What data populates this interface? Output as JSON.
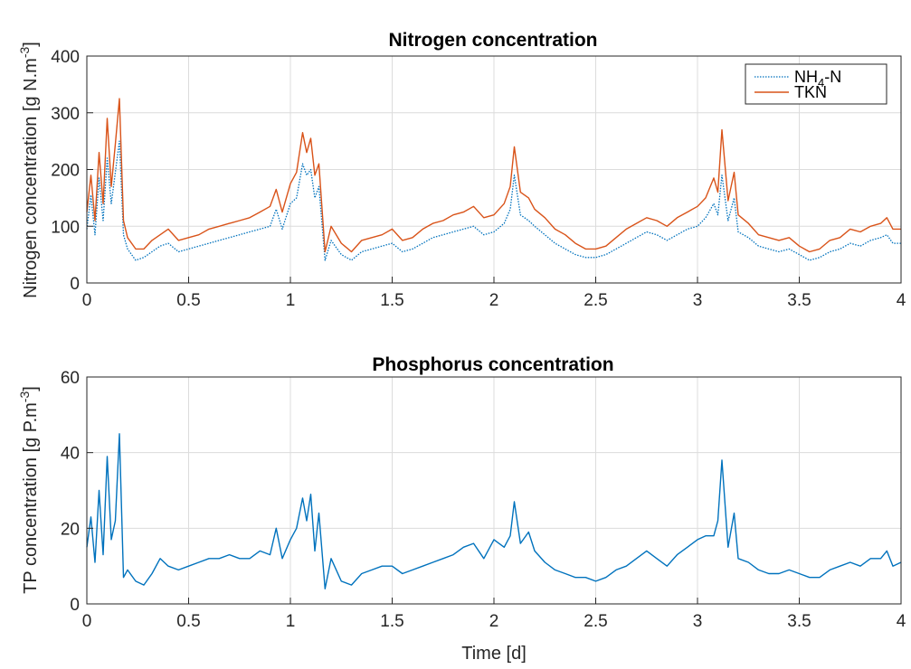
{
  "chart_data": [
    {
      "type": "line",
      "title": "Nitrogen concentration",
      "xlabel": "",
      "ylabel": "Nitrogen concentration [g N.m",
      "ylabel_superscript": "-3",
      "ylabel_close": "]",
      "xlim": [
        0,
        4
      ],
      "ylim": [
        0,
        400
      ],
      "xticks": [
        0,
        0.5,
        1,
        1.5,
        2,
        2.5,
        3,
        3.5,
        4
      ],
      "xtick_labels": [
        "0",
        "0.5",
        "1",
        "1.5",
        "2",
        "2.5",
        "3",
        "3.5",
        "4"
      ],
      "yticks": [
        0,
        100,
        200,
        300,
        400
      ],
      "ytick_labels": [
        "0",
        "100",
        "200",
        "300",
        "400"
      ],
      "grid": true,
      "legend_position": "top-right",
      "x": [
        0,
        0.02,
        0.04,
        0.06,
        0.08,
        0.1,
        0.12,
        0.14,
        0.16,
        0.18,
        0.2,
        0.24,
        0.28,
        0.32,
        0.36,
        0.4,
        0.45,
        0.5,
        0.55,
        0.6,
        0.65,
        0.7,
        0.75,
        0.8,
        0.85,
        0.9,
        0.93,
        0.96,
        1.0,
        1.03,
        1.06,
        1.08,
        1.1,
        1.12,
        1.14,
        1.17,
        1.2,
        1.25,
        1.3,
        1.35,
        1.4,
        1.45,
        1.5,
        1.55,
        1.6,
        1.65,
        1.7,
        1.75,
        1.8,
        1.85,
        1.9,
        1.95,
        2.0,
        2.05,
        2.08,
        2.1,
        2.13,
        2.17,
        2.2,
        2.25,
        2.3,
        2.35,
        2.4,
        2.45,
        2.5,
        2.55,
        2.6,
        2.65,
        2.7,
        2.75,
        2.8,
        2.85,
        2.9,
        2.95,
        3.0,
        3.04,
        3.08,
        3.1,
        3.12,
        3.15,
        3.18,
        3.2,
        3.25,
        3.3,
        3.35,
        3.4,
        3.45,
        3.5,
        3.55,
        3.6,
        3.65,
        3.7,
        3.75,
        3.8,
        3.85,
        3.9,
        3.93,
        3.96,
        4.0
      ],
      "series": [
        {
          "name": "NH",
          "name_sub": "4",
          "name_rest": "-N",
          "color": "#0072BD",
          "style": "dotted",
          "values": [
            95,
            155,
            85,
            185,
            110,
            220,
            140,
            195,
            250,
            85,
            60,
            40,
            45,
            55,
            65,
            70,
            55,
            60,
            65,
            70,
            75,
            80,
            85,
            90,
            95,
            100,
            130,
            95,
            140,
            150,
            210,
            190,
            200,
            150,
            170,
            40,
            75,
            50,
            40,
            55,
            60,
            65,
            70,
            55,
            60,
            70,
            80,
            85,
            90,
            95,
            100,
            85,
            90,
            105,
            130,
            190,
            120,
            110,
            100,
            85,
            70,
            60,
            50,
            45,
            45,
            50,
            60,
            70,
            80,
            90,
            85,
            75,
            85,
            95,
            100,
            115,
            140,
            120,
            190,
            110,
            150,
            90,
            80,
            65,
            60,
            55,
            60,
            50,
            40,
            45,
            55,
            60,
            70,
            65,
            75,
            80,
            85,
            70,
            70
          ]
        },
        {
          "name": "TKN",
          "color": "#D95319",
          "style": "solid",
          "values": [
            125,
            190,
            110,
            230,
            140,
            290,
            170,
            245,
            325,
            110,
            80,
            60,
            60,
            75,
            85,
            95,
            75,
            80,
            85,
            95,
            100,
            105,
            110,
            115,
            125,
            135,
            165,
            125,
            175,
            195,
            265,
            230,
            255,
            190,
            210,
            55,
            100,
            70,
            55,
            75,
            80,
            85,
            95,
            75,
            80,
            95,
            105,
            110,
            120,
            125,
            135,
            115,
            120,
            140,
            170,
            240,
            160,
            150,
            130,
            115,
            95,
            85,
            70,
            60,
            60,
            65,
            80,
            95,
            105,
            115,
            110,
            100,
            115,
            125,
            135,
            150,
            185,
            160,
            270,
            145,
            195,
            120,
            105,
            85,
            80,
            75,
            80,
            65,
            55,
            60,
            75,
            80,
            95,
            90,
            100,
            105,
            115,
            95,
            95
          ]
        }
      ]
    },
    {
      "type": "line",
      "title": "Phosphorus concentration",
      "xlabel": "Time [d]",
      "ylabel": "TP concentration [g P.m",
      "ylabel_superscript": "-3",
      "ylabel_close": "]",
      "xlim": [
        0,
        4
      ],
      "ylim": [
        0,
        60
      ],
      "xticks": [
        0,
        0.5,
        1,
        1.5,
        2,
        2.5,
        3,
        3.5,
        4
      ],
      "xtick_labels": [
        "0",
        "0.5",
        "1",
        "1.5",
        "2",
        "2.5",
        "3",
        "3.5",
        "4"
      ],
      "yticks": [
        0,
        20,
        40,
        60
      ],
      "ytick_labels": [
        "0",
        "20",
        "40",
        "60"
      ],
      "grid": true,
      "x": [
        0,
        0.02,
        0.04,
        0.06,
        0.08,
        0.1,
        0.12,
        0.14,
        0.16,
        0.18,
        0.2,
        0.24,
        0.28,
        0.32,
        0.36,
        0.4,
        0.45,
        0.5,
        0.55,
        0.6,
        0.65,
        0.7,
        0.75,
        0.8,
        0.85,
        0.9,
        0.93,
        0.96,
        1.0,
        1.03,
        1.06,
        1.08,
        1.1,
        1.12,
        1.14,
        1.17,
        1.2,
        1.25,
        1.3,
        1.35,
        1.4,
        1.45,
        1.5,
        1.55,
        1.6,
        1.65,
        1.7,
        1.75,
        1.8,
        1.85,
        1.9,
        1.95,
        2.0,
        2.05,
        2.08,
        2.1,
        2.13,
        2.17,
        2.2,
        2.25,
        2.3,
        2.35,
        2.4,
        2.45,
        2.5,
        2.55,
        2.6,
        2.65,
        2.7,
        2.75,
        2.8,
        2.85,
        2.9,
        2.95,
        3.0,
        3.04,
        3.08,
        3.1,
        3.12,
        3.15,
        3.18,
        3.2,
        3.25,
        3.3,
        3.35,
        3.4,
        3.45,
        3.5,
        3.55,
        3.6,
        3.65,
        3.7,
        3.75,
        3.8,
        3.85,
        3.9,
        3.93,
        3.96,
        4.0
      ],
      "series": [
        {
          "name": "",
          "color": "#0072BD",
          "style": "solid",
          "values": [
            15,
            23,
            11,
            30,
            13,
            39,
            17,
            22,
            45,
            7,
            9,
            6,
            5,
            8,
            12,
            10,
            9,
            10,
            11,
            12,
            12,
            13,
            12,
            12,
            14,
            13,
            20,
            12,
            17,
            20,
            28,
            22,
            29,
            14,
            24,
            4,
            12,
            6,
            5,
            8,
            9,
            10,
            10,
            8,
            9,
            10,
            11,
            12,
            13,
            15,
            16,
            12,
            17,
            15,
            18,
            27,
            16,
            19,
            14,
            11,
            9,
            8,
            7,
            7,
            6,
            7,
            9,
            10,
            12,
            14,
            12,
            10,
            13,
            15,
            17,
            18,
            18,
            22,
            38,
            15,
            24,
            12,
            11,
            9,
            8,
            8,
            9,
            8,
            7,
            7,
            9,
            10,
            11,
            10,
            12,
            12,
            14,
            10,
            11
          ]
        }
      ]
    }
  ]
}
